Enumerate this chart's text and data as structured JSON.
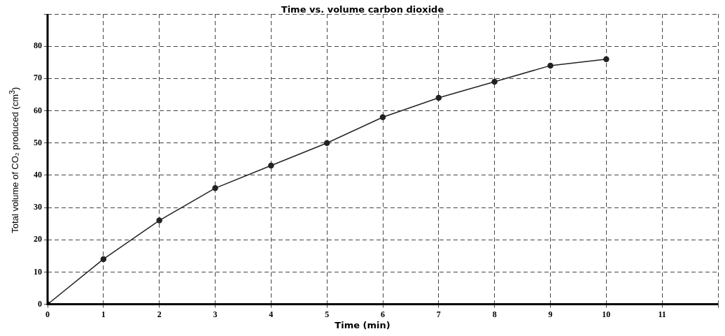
{
  "chart_data": {
    "type": "line",
    "title": "Time vs. volume carbon dioxide",
    "xlabel": "Time (min)",
    "ylabel": "Total volume of CO₂ produced (cm$^{3}$)",
    "x": [
      0,
      1,
      2,
      3,
      4,
      5,
      6,
      7,
      8,
      9,
      10
    ],
    "series": [
      {
        "color": "#222222",
        "values": [
          0,
          14,
          26,
          36,
          43,
          50,
          58,
          64,
          69,
          74,
          76
        ]
      }
    ],
    "xlim": [
      0,
      12
    ],
    "xticks": [
      0,
      1,
      2,
      3,
      4,
      5,
      6,
      7,
      8,
      9,
      10,
      11,
      {
        "value": 12,
        "label": null
      }
    ],
    "ylim": [
      0,
      90
    ],
    "yticks": [
      0,
      10,
      20,
      30,
      40,
      50,
      60,
      70,
      80,
      {
        "value": 90,
        "label": null
      }
    ],
    "grid": true,
    "legend": false,
    "marker": "circle",
    "line_style": "solid"
  }
}
